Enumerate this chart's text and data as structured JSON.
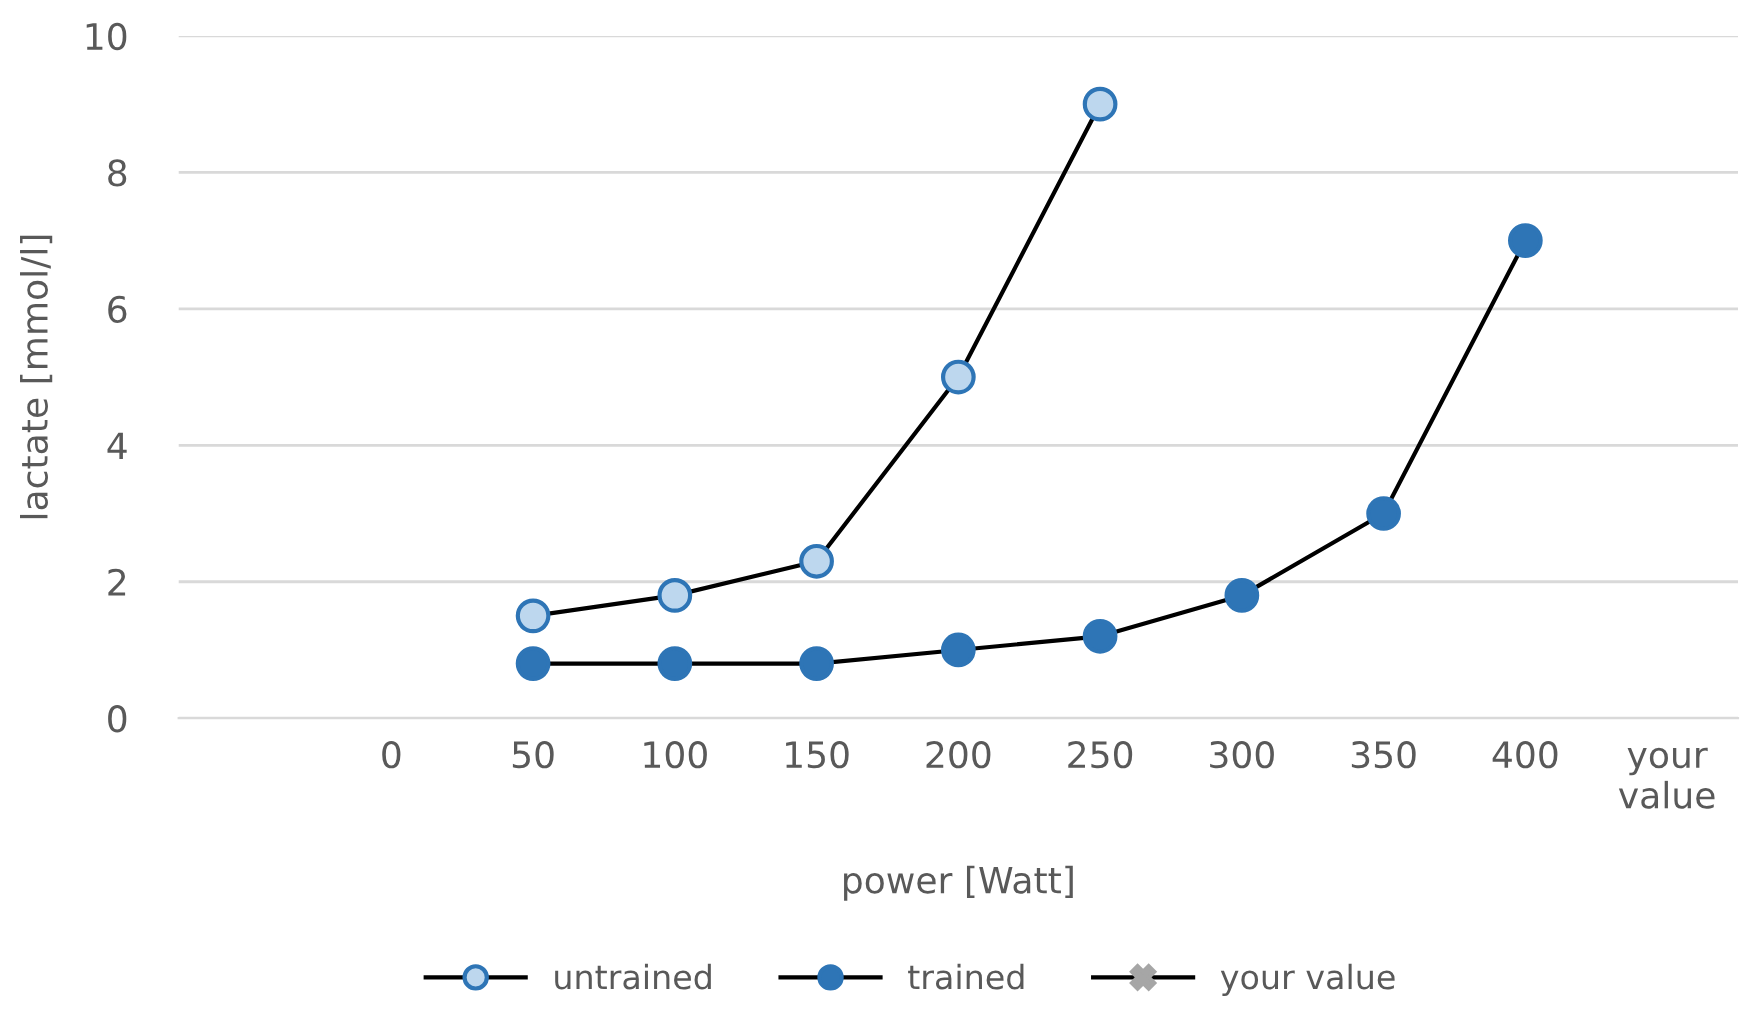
{
  "chart_data": {
    "type": "line",
    "xlabel": "power [Watt]",
    "ylabel": "lactate [mmol/l]",
    "categories": [
      null,
      "0",
      "50",
      "100",
      "150",
      "200",
      "250",
      "300",
      "350",
      "400",
      "your value"
    ],
    "series": [
      {
        "name": "untrained",
        "color": "#bdd7ee",
        "values": [
          null,
          null,
          1.5,
          1.8,
          2.3,
          5.0,
          9.0,
          null,
          null,
          null,
          null
        ]
      },
      {
        "name": "trained",
        "color": "#2e75b6",
        "values": [
          null,
          null,
          0.8,
          0.8,
          0.8,
          1.0,
          1.2,
          1.8,
          3.0,
          7.0,
          null
        ]
      },
      {
        "name": "your value",
        "color": "#a6a6a6",
        "marker": "cross",
        "values": [
          null,
          null,
          null,
          null,
          null,
          null,
          null,
          null,
          null,
          null,
          null
        ]
      }
    ],
    "ylim": [
      0,
      10
    ],
    "yticks": [
      0,
      2,
      4,
      6,
      8,
      10
    ],
    "grid": "y",
    "legend": "bottom",
    "marker": "circle",
    "line_style": "solid"
  }
}
